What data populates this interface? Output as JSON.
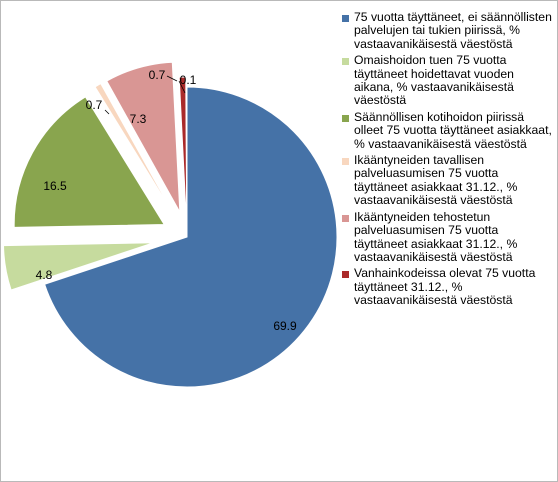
{
  "chart_data": {
    "type": "pie",
    "exploded": true,
    "start_angle_deg": 0,
    "direction": "clockwise",
    "legend_position": "right",
    "series": [
      {
        "label": "75 vuotta täyttäneet, ei säännöllisten palvelujen tai tukien piirissä, % vastaavanikäisestä väestöstä",
        "value": 69.9,
        "value_label": "69.9",
        "color": "#4572A7"
      },
      {
        "label": "Omaishoidon tuen 75 vuotta täyttäneet hoidettavat vuoden aikana, % vastaavanikäisestä väestöstä",
        "value": 4.8,
        "value_label": "4.8",
        "color": "#C6DB9E"
      },
      {
        "label": "Säännöllisen kotihoidon piirissä olleet 75 vuotta täyttäneet asiakkaat, % vastaavanikäisestä väestöstä",
        "value": 16.5,
        "value_label": "16.5",
        "color": "#89A54E"
      },
      {
        "label": "Ikääntyneiden tavallisen palveluasumisen 75 vuotta täyttäneet asiakkaat 31.12., % vastaavanikäisestä väestöstä",
        "value": 0.7,
        "value_label": "0.7",
        "color": "#F8D7BF"
      },
      {
        "label": "Ikääntyneiden tehostetun palveluasumisen 75 vuotta täyttäneet asiakkaat 31.12., % vastaavanikäisestä väestöstä",
        "value": 7.3,
        "value_label": "7.3",
        "color": "#D99694"
      },
      {
        "label": "Vanhainkodeissa olevat 75 vuotta täyttäneet 31.12., % vastaavanikäisestä väestöstä",
        "value": 0.7,
        "value_label": "0.7",
        "color": "#AA2A2A"
      },
      {
        "label": "",
        "value": 0.1,
        "value_label": "0.1",
        "color": "#2F4F8F"
      }
    ]
  }
}
